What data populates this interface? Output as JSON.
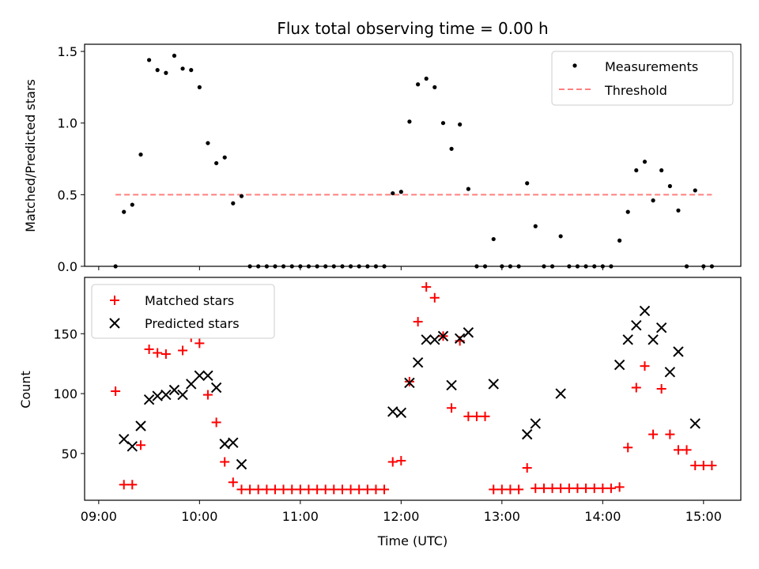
{
  "chart_data": {
    "type": "scatter",
    "title": "Flux total observing time = 0.00 h",
    "xlabel": "Time (UTC)",
    "x_tick_labels": [
      "09:00",
      "10:00",
      "11:00",
      "12:00",
      "13:00",
      "14:00",
      "15:00"
    ],
    "x_ticks_hours": [
      9,
      10,
      11,
      12,
      13,
      14,
      15
    ],
    "xlim_hours": [
      8.86,
      15.37
    ],
    "panels": [
      {
        "id": "ratio",
        "ylabel": "Matched/Predicted stars",
        "ylim": [
          0,
          1.55
        ],
        "y_ticks": [
          0,
          0.5,
          1,
          1.5
        ],
        "y_tick_labels": [
          "0.0",
          "0.5",
          "1.0",
          "1.5"
        ],
        "legend": {
          "position": "top-right",
          "entries": [
            "Measurements",
            "Threshold"
          ]
        },
        "threshold": {
          "name": "Threshold",
          "value": 0.5,
          "x_range_hours": [
            9.167,
            15.083
          ],
          "color": "#ff7f7f"
        },
        "series": [
          {
            "name": "Measurements",
            "marker": "dot",
            "color": "#000000",
            "points": [
              [
                9.167,
                0.0
              ],
              [
                9.25,
                0.38
              ],
              [
                9.333,
                0.43
              ],
              [
                9.417,
                0.78
              ],
              [
                9.5,
                1.44
              ],
              [
                9.583,
                1.37
              ],
              [
                9.667,
                1.35
              ],
              [
                9.75,
                1.47
              ],
              [
                9.833,
                1.38
              ],
              [
                9.917,
                1.37
              ],
              [
                10.0,
                1.25
              ],
              [
                10.083,
                0.86
              ],
              [
                10.167,
                0.72
              ],
              [
                10.25,
                0.76
              ],
              [
                10.333,
                0.44
              ],
              [
                10.417,
                0.49
              ],
              [
                10.5,
                0.0
              ],
              [
                10.583,
                0.0
              ],
              [
                10.667,
                0.0
              ],
              [
                10.75,
                0.0
              ],
              [
                10.833,
                0.0
              ],
              [
                10.917,
                0.0
              ],
              [
                11.0,
                0.0
              ],
              [
                11.083,
                0.0
              ],
              [
                11.167,
                0.0
              ],
              [
                11.25,
                0.0
              ],
              [
                11.333,
                0.0
              ],
              [
                11.417,
                0.0
              ],
              [
                11.5,
                0.0
              ],
              [
                11.583,
                0.0
              ],
              [
                11.667,
                0.0
              ],
              [
                11.75,
                0.0
              ],
              [
                11.833,
                0.0
              ],
              [
                11.917,
                0.51
              ],
              [
                12.0,
                0.52
              ],
              [
                12.083,
                1.01
              ],
              [
                12.167,
                1.27
              ],
              [
                12.25,
                1.31
              ],
              [
                12.333,
                1.25
              ],
              [
                12.417,
                1.0
              ],
              [
                12.5,
                0.82
              ],
              [
                12.583,
                0.99
              ],
              [
                12.667,
                0.54
              ],
              [
                12.75,
                0.0
              ],
              [
                12.833,
                0.0
              ],
              [
                12.917,
                0.19
              ],
              [
                13.0,
                0.0
              ],
              [
                13.083,
                0.0
              ],
              [
                13.167,
                0.0
              ],
              [
                13.25,
                0.58
              ],
              [
                13.333,
                0.28
              ],
              [
                13.417,
                0.0
              ],
              [
                13.5,
                0.0
              ],
              [
                13.583,
                0.21
              ],
              [
                13.667,
                0.0
              ],
              [
                13.75,
                0.0
              ],
              [
                13.833,
                0.0
              ],
              [
                13.917,
                0.0
              ],
              [
                14.0,
                0.0
              ],
              [
                14.083,
                0.0
              ],
              [
                14.167,
                0.18
              ],
              [
                14.25,
                0.38
              ],
              [
                14.333,
                0.67
              ],
              [
                14.417,
                0.73
              ],
              [
                14.5,
                0.46
              ],
              [
                14.583,
                0.67
              ],
              [
                14.667,
                0.56
              ],
              [
                14.75,
                0.39
              ],
              [
                14.833,
                0.0
              ],
              [
                14.917,
                0.53
              ],
              [
                15.0,
                0.0
              ],
              [
                15.083,
                0.0
              ]
            ]
          }
        ]
      },
      {
        "id": "counts",
        "ylabel": "Count",
        "ylim": [
          11,
          197
        ],
        "y_ticks": [
          50,
          100,
          150
        ],
        "y_tick_labels": [
          "50",
          "100",
          "150"
        ],
        "legend": {
          "position": "top-left",
          "entries": [
            "Matched stars",
            "Predicted stars"
          ]
        },
        "series": [
          {
            "name": "Matched stars",
            "marker": "plus",
            "color": "#ff0000",
            "points": [
              [
                9.167,
                102
              ],
              [
                9.25,
                24
              ],
              [
                9.333,
                24
              ],
              [
                9.417,
                57
              ],
              [
                9.5,
                137
              ],
              [
                9.583,
                134
              ],
              [
                9.667,
                133
              ],
              [
                9.75,
                150
              ],
              [
                9.833,
                136
              ],
              [
                9.917,
                147
              ],
              [
                10.0,
                142
              ],
              [
                10.083,
                99
              ],
              [
                10.167,
                76
              ],
              [
                10.25,
                43
              ],
              [
                10.333,
                26
              ],
              [
                10.417,
                20
              ],
              [
                10.5,
                20
              ],
              [
                10.583,
                20
              ],
              [
                10.667,
                20
              ],
              [
                10.75,
                20
              ],
              [
                10.833,
                20
              ],
              [
                10.917,
                20
              ],
              [
                11.0,
                20
              ],
              [
                11.083,
                20
              ],
              [
                11.167,
                20
              ],
              [
                11.25,
                20
              ],
              [
                11.333,
                20
              ],
              [
                11.417,
                20
              ],
              [
                11.5,
                20
              ],
              [
                11.583,
                20
              ],
              [
                11.667,
                20
              ],
              [
                11.75,
                20
              ],
              [
                11.833,
                20
              ],
              [
                11.917,
                43
              ],
              [
                12.0,
                44
              ],
              [
                12.083,
                110
              ],
              [
                12.167,
                160
              ],
              [
                12.25,
                189
              ],
              [
                12.333,
                180
              ],
              [
                12.417,
                148
              ],
              [
                12.5,
                88
              ],
              [
                12.583,
                144
              ],
              [
                12.667,
                81
              ],
              [
                12.75,
                81
              ],
              [
                12.833,
                81
              ],
              [
                12.917,
                20
              ],
              [
                13.0,
                20
              ],
              [
                13.083,
                20
              ],
              [
                13.167,
                20
              ],
              [
                13.25,
                38
              ],
              [
                13.333,
                21
              ],
              [
                13.417,
                21
              ],
              [
                13.5,
                21
              ],
              [
                13.583,
                21
              ],
              [
                13.667,
                21
              ],
              [
                13.75,
                21
              ],
              [
                13.833,
                21
              ],
              [
                13.917,
                21
              ],
              [
                14.0,
                21
              ],
              [
                14.083,
                21
              ],
              [
                14.167,
                22
              ],
              [
                14.25,
                55
              ],
              [
                14.333,
                105
              ],
              [
                14.417,
                123
              ],
              [
                14.5,
                66
              ],
              [
                14.583,
                104
              ],
              [
                14.667,
                66
              ],
              [
                14.75,
                53
              ],
              [
                14.833,
                53
              ],
              [
                14.917,
                40
              ],
              [
                15.0,
                40
              ],
              [
                15.083,
                40
              ]
            ]
          },
          {
            "name": "Predicted stars",
            "marker": "x",
            "color": "#000000",
            "points": [
              [
                9.25,
                62
              ],
              [
                9.333,
                56
              ],
              [
                9.417,
                73
              ],
              [
                9.5,
                95
              ],
              [
                9.583,
                98
              ],
              [
                9.667,
                99
              ],
              [
                9.75,
                103
              ],
              [
                9.833,
                99
              ],
              [
                9.917,
                108
              ],
              [
                10.0,
                115
              ],
              [
                10.083,
                115
              ],
              [
                10.167,
                105
              ],
              [
                10.25,
                58
              ],
              [
                10.333,
                59
              ],
              [
                10.417,
                41
              ],
              [
                11.917,
                85
              ],
              [
                12.0,
                84
              ],
              [
                12.083,
                109
              ],
              [
                12.167,
                126
              ],
              [
                12.25,
                145
              ],
              [
                12.333,
                145
              ],
              [
                12.417,
                148
              ],
              [
                12.5,
                107
              ],
              [
                12.583,
                146
              ],
              [
                12.667,
                151
              ],
              [
                12.917,
                108
              ],
              [
                13.25,
                66
              ],
              [
                13.333,
                75
              ],
              [
                13.583,
                100
              ],
              [
                14.167,
                124
              ],
              [
                14.25,
                145
              ],
              [
                14.333,
                157
              ],
              [
                14.417,
                169
              ],
              [
                14.5,
                145
              ],
              [
                14.583,
                155
              ],
              [
                14.667,
                118
              ],
              [
                14.75,
                135
              ],
              [
                14.917,
                75
              ]
            ]
          }
        ]
      }
    ]
  }
}
